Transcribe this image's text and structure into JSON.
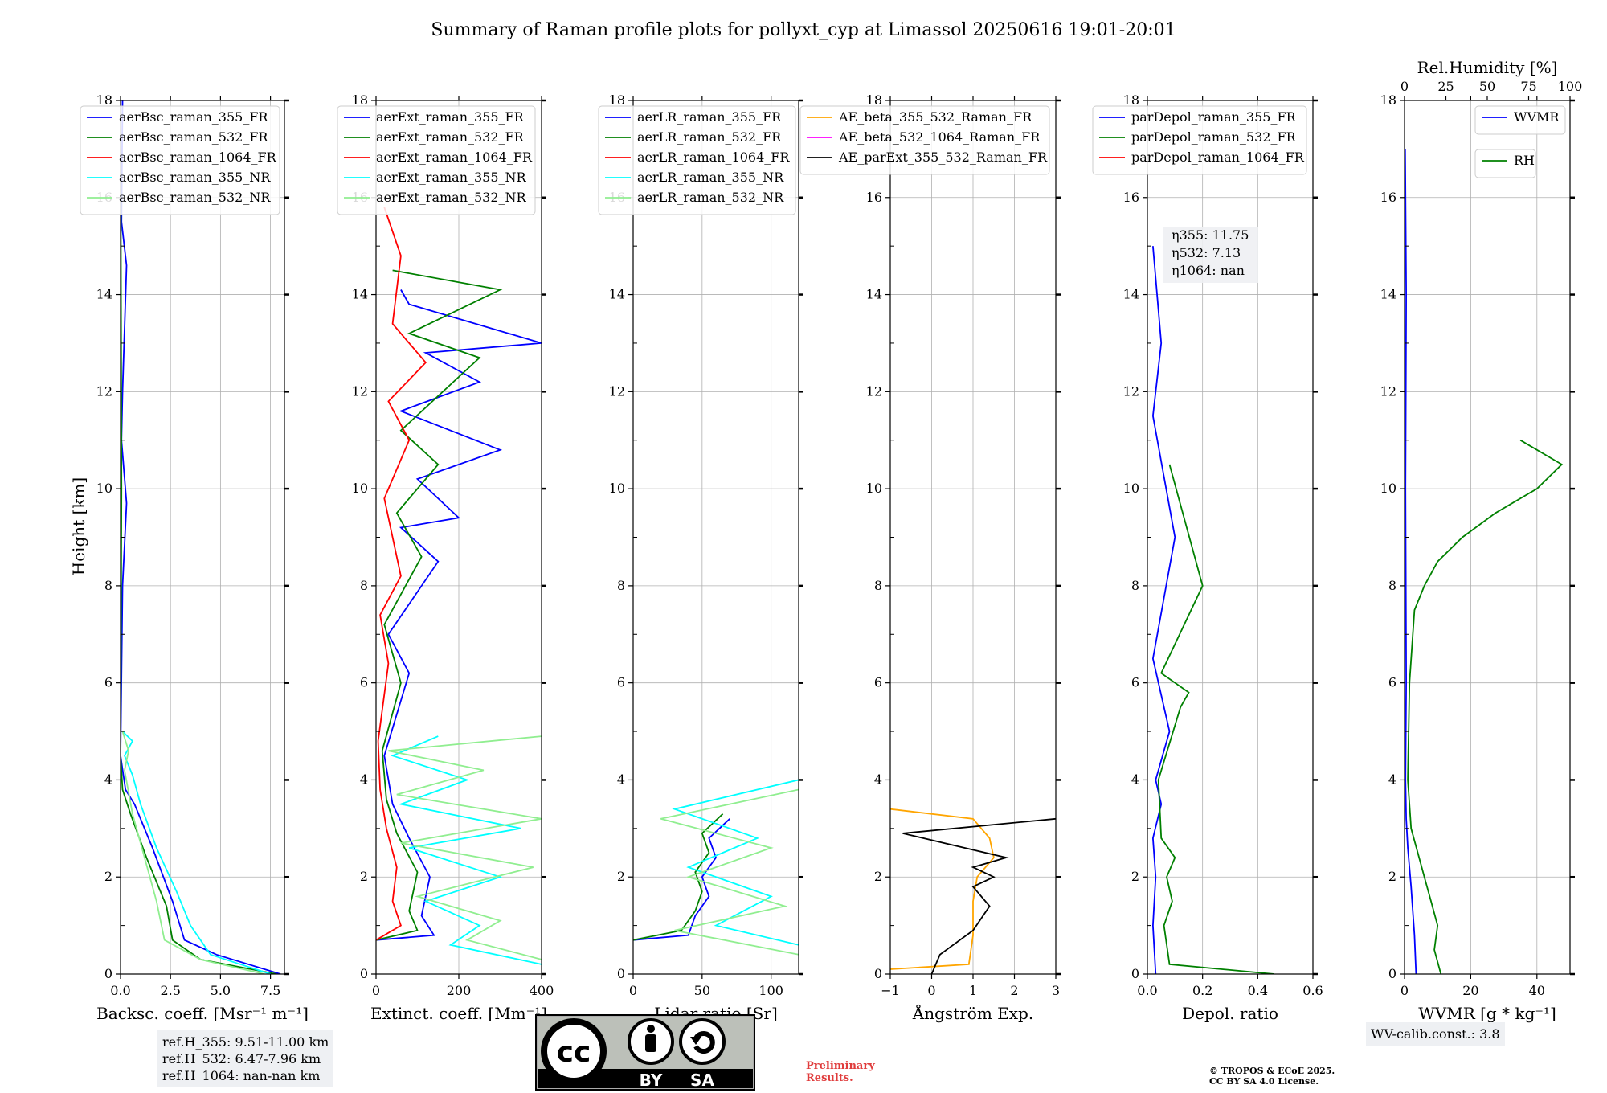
{
  "figure": {
    "title": "Summary of Raman profile plots for pollyxt_cyp at Limassol 20250616 19:01-20:01",
    "ylabel": "Height [km]"
  },
  "chart_data": [
    {
      "type": "line",
      "panel": "backscatter",
      "xlabel": "Backsc. coeff. [Msr⁻¹ m⁻¹]",
      "xlim": [
        0,
        8.2
      ],
      "ylim": [
        0,
        18
      ],
      "xticks": [
        0,
        2.5,
        5,
        7.5
      ],
      "xticklabels": [
        "0.0",
        "2.5",
        "5.0",
        "7.5"
      ],
      "yticks": [
        0,
        2,
        4,
        6,
        8,
        10,
        12,
        14,
        16,
        18
      ],
      "legend": "top-left",
      "series": [
        {
          "name": "aerBsc_raman_355_FR",
          "color": "#0000ff",
          "x": [
            8.0,
            4.8,
            3.2,
            2.6,
            1.6,
            0.7,
            0.25,
            0.0,
            0.1,
            0.3,
            0.05,
            0.1,
            0.3,
            0.05,
            0.1
          ],
          "y": [
            0,
            0.4,
            0.7,
            1.5,
            2.6,
            3.5,
            3.8,
            4.5,
            8,
            9.7,
            11,
            12,
            14.6,
            15.5,
            18
          ]
        },
        {
          "name": "aerBsc_raman_532_FR",
          "color": "#008000",
          "x": [
            7.8,
            4.0,
            2.6,
            2.3,
            1.3,
            0.5,
            0.1,
            0.0,
            0.05,
            0.0
          ],
          "y": [
            0,
            0.3,
            0.7,
            1.4,
            2.4,
            3.3,
            3.8,
            4.5,
            10,
            18
          ]
        },
        {
          "name": "aerBsc_raman_1064_FR",
          "color": "#ff0000",
          "x": [],
          "y": []
        },
        {
          "name": "aerBsc_raman_355_NR",
          "color": "#00ffff",
          "x": [
            7.5,
            4.5,
            3.5,
            2.8,
            1.8,
            1.0,
            0.6,
            0.2,
            0.6,
            0.1
          ],
          "y": [
            0,
            0.4,
            1.0,
            1.7,
            2.6,
            3.5,
            4.1,
            4.5,
            4.8,
            5.0
          ]
        },
        {
          "name": "aerBsc_raman_532_NR",
          "color": "#90ee90",
          "x": [
            7.2,
            4.0,
            2.2,
            1.8,
            1.2,
            0.6,
            0.2,
            0.4,
            0.1
          ],
          "y": [
            0,
            0.3,
            0.7,
            1.5,
            2.4,
            3.3,
            4.2,
            4.6,
            5.0
          ]
        }
      ]
    },
    {
      "type": "line",
      "panel": "extinction",
      "xlabel": "Extinct. coeff. [Mm⁻¹]",
      "xlim": [
        0,
        400
      ],
      "ylim": [
        0,
        18
      ],
      "xticks": [
        0,
        200,
        400
      ],
      "xticklabels": [
        "0",
        "200",
        "400"
      ],
      "yticks": [
        0,
        2,
        4,
        6,
        8,
        10,
        12,
        14,
        16,
        18
      ],
      "legend": "top-left",
      "series": [
        {
          "name": "aerExt_raman_355_FR",
          "color": "#0000ff",
          "x": [
            0,
            140,
            110,
            130,
            80,
            40,
            20,
            80,
            30,
            150,
            60,
            200,
            100,
            300,
            60,
            250,
            120,
            400,
            80,
            60
          ],
          "y": [
            0.7,
            0.8,
            1.2,
            2.0,
            2.8,
            3.5,
            4.5,
            6.2,
            7.0,
            8.5,
            9.2,
            9.4,
            10.2,
            10.8,
            11.6,
            12.2,
            12.8,
            13.0,
            13.8,
            14.1
          ]
        },
        {
          "name": "aerExt_raman_532_FR",
          "color": "#008000",
          "x": [
            0,
            100,
            80,
            100,
            50,
            25,
            15,
            60,
            20,
            110,
            50,
            150,
            60,
            250,
            80,
            300,
            40
          ],
          "y": [
            0.7,
            0.9,
            1.3,
            2.1,
            2.9,
            3.6,
            4.6,
            6.0,
            7.2,
            8.6,
            9.5,
            10.5,
            11.2,
            12.7,
            13.2,
            14.1,
            14.5
          ]
        },
        {
          "name": "aerExt_raman_1064_FR",
          "color": "#ff0000",
          "x": [
            0,
            60,
            40,
            50,
            25,
            10,
            5,
            30,
            10,
            60,
            20,
            80,
            30,
            120,
            40,
            60,
            20
          ],
          "y": [
            0.7,
            1.0,
            1.5,
            2.2,
            3.0,
            3.8,
            4.8,
            6.4,
            7.4,
            8.2,
            9.8,
            11.0,
            11.8,
            12.6,
            13.4,
            14.8,
            15.8
          ]
        },
        {
          "name": "aerExt_raman_355_NR",
          "color": "#00ffff",
          "x": [
            400,
            180,
            250,
            120,
            300,
            80,
            350,
            60,
            220,
            40,
            150
          ],
          "y": [
            0.2,
            0.6,
            1.0,
            1.5,
            2.0,
            2.6,
            3.0,
            3.5,
            4.0,
            4.5,
            4.9
          ]
        },
        {
          "name": "aerExt_raman_532_NR",
          "color": "#90ee90",
          "x": [
            400,
            220,
            300,
            100,
            380,
            60,
            400,
            50,
            260,
            30,
            400
          ],
          "y": [
            0.3,
            0.7,
            1.1,
            1.6,
            2.2,
            2.7,
            3.2,
            3.7,
            4.2,
            4.6,
            4.9
          ]
        }
      ]
    },
    {
      "type": "line",
      "panel": "lidar_ratio",
      "xlabel": "Lidar ratio [Sr]",
      "xlim": [
        0,
        120
      ],
      "ylim": [
        0,
        18
      ],
      "xticks": [
        0,
        50,
        100
      ],
      "xticklabels": [
        "0",
        "50",
        "100"
      ],
      "yticks": [
        0,
        2,
        4,
        6,
        8,
        10,
        12,
        14,
        16,
        18
      ],
      "legend": "top-left",
      "series": [
        {
          "name": "aerLR_raman_355_FR",
          "color": "#0000ff",
          "x": [
            0,
            40,
            45,
            55,
            50,
            60,
            55,
            70
          ],
          "y": [
            0.7,
            0.8,
            1.2,
            1.6,
            2.0,
            2.4,
            2.8,
            3.2
          ]
        },
        {
          "name": "aerLR_raman_532_FR",
          "color": "#008000",
          "x": [
            0,
            35,
            45,
            50,
            45,
            55,
            50,
            65
          ],
          "y": [
            0.7,
            0.9,
            1.3,
            1.7,
            2.1,
            2.5,
            2.9,
            3.3
          ]
        },
        {
          "name": "aerLR_raman_1064_FR",
          "color": "#ff0000",
          "x": [],
          "y": []
        },
        {
          "name": "aerLR_raman_355_NR",
          "color": "#00ffff",
          "x": [
            120,
            60,
            100,
            40,
            90,
            30,
            120
          ],
          "y": [
            0.6,
            1.0,
            1.6,
            2.2,
            2.8,
            3.4,
            4.0
          ]
        },
        {
          "name": "aerLR_raman_532_NR",
          "color": "#90ee90",
          "x": [
            120,
            30,
            110,
            40,
            100,
            20,
            120
          ],
          "y": [
            0.4,
            0.9,
            1.4,
            2.0,
            2.6,
            3.2,
            3.8
          ]
        }
      ]
    },
    {
      "type": "line",
      "panel": "angstrom",
      "xlabel": "Ångström Exp.",
      "xlim": [
        -1,
        3
      ],
      "ylim": [
        0,
        18
      ],
      "xticks": [
        -1,
        0,
        1,
        2,
        3
      ],
      "xticklabels": [
        "−1",
        "0",
        "1",
        "2",
        "3"
      ],
      "yticks": [
        0,
        2,
        4,
        6,
        8,
        10,
        12,
        14,
        16,
        18
      ],
      "legend": "top-right",
      "series": [
        {
          "name": "AE_beta_355_532_Raman_FR",
          "color": "#ffa500",
          "x": [
            -1,
            0.9,
            1.0,
            1.0,
            1.1,
            1.5,
            1.4,
            1.0,
            -1.0
          ],
          "y": [
            0.1,
            0.2,
            0.8,
            1.5,
            2.0,
            2.4,
            2.8,
            3.2,
            3.4
          ]
        },
        {
          "name": "AE_beta_532_1064_Raman_FR",
          "color": "#ff00ff",
          "x": [],
          "y": []
        },
        {
          "name": "AE_parExt_355_532_Raman_FR",
          "color": "#000000",
          "x": [
            0,
            0.2,
            1.0,
            1.4,
            1.0,
            1.5,
            1.0,
            1.8,
            0.3,
            -0.7,
            3.0
          ],
          "y": [
            0.0,
            0.4,
            0.9,
            1.4,
            1.8,
            2.0,
            2.2,
            2.4,
            2.7,
            2.9,
            3.2
          ]
        }
      ]
    },
    {
      "type": "line",
      "panel": "depolarization",
      "xlabel": "Depol. ratio",
      "xlim": [
        0,
        0.6
      ],
      "ylim": [
        0,
        18
      ],
      "xticks": [
        0,
        0.2,
        0.4,
        0.6
      ],
      "xticklabels": [
        "0.0",
        "0.2",
        "0.4",
        "0.6"
      ],
      "yticks": [
        0,
        2,
        4,
        6,
        8,
        10,
        12,
        14,
        16,
        18
      ],
      "legend": "top-left",
      "annotation": [
        "η355: 11.75",
        "η532: 7.13",
        "η1064: nan"
      ],
      "series": [
        {
          "name": "parDepol_raman_355_FR",
          "color": "#0000ff",
          "x": [
            0.03,
            0.02,
            0.03,
            0.02,
            0.05,
            0.03,
            0.08,
            0.02,
            0.1,
            0.02,
            0.05,
            0.02
          ],
          "y": [
            0,
            1.0,
            2.0,
            2.8,
            3.5,
            4.0,
            5.0,
            6.5,
            9.0,
            11.5,
            13.0,
            15.0
          ]
        },
        {
          "name": "parDepol_raman_532_FR",
          "color": "#008000",
          "x": [
            0.46,
            0.08,
            0.06,
            0.09,
            0.07,
            0.1,
            0.05,
            0.04,
            0.12,
            0.15,
            0.05,
            0.2,
            0.08
          ],
          "y": [
            0,
            0.2,
            1.0,
            1.5,
            2.0,
            2.4,
            2.8,
            4.0,
            5.5,
            5.8,
            6.2,
            8.0,
            10.5
          ]
        },
        {
          "name": "parDepol_raman_1064_FR",
          "color": "#ff0000",
          "x": [],
          "y": []
        }
      ]
    },
    {
      "type": "line",
      "panel": "water_vapor",
      "xlabel": "WVMR [g * kg⁻¹]",
      "xlim": [
        0,
        50
      ],
      "ylim": [
        0,
        18
      ],
      "xticks": [
        0,
        20,
        40
      ],
      "xticklabels": [
        "0",
        "20",
        "40"
      ],
      "yticks": [
        0,
        2,
        4,
        6,
        8,
        10,
        12,
        14,
        16,
        18
      ],
      "top_xlabel": "Rel.Humidity [%]",
      "top_xlim": [
        0,
        100
      ],
      "top_xticks": [
        0,
        25,
        50,
        75,
        100
      ],
      "top_xticklabels": [
        "0",
        "25",
        "50",
        "75",
        "100"
      ],
      "series": [
        {
          "name": "WVMR",
          "color": "#0000ff",
          "x": [
            3.5,
            3.0,
            2.0,
            1.0,
            0.5,
            0.3,
            0.5,
            0.3,
            0.5,
            0.2
          ],
          "y": [
            0,
            0.8,
            1.8,
            2.6,
            3.2,
            4.0,
            6.0,
            10.0,
            14.0,
            17.0
          ]
        },
        {
          "name": "RH",
          "color": "#008000",
          "x_rh": [
            22,
            18,
            20,
            16,
            12,
            8,
            4,
            2,
            3,
            6,
            12,
            20,
            35,
            55,
            80,
            95,
            70
          ],
          "y": [
            0,
            0.5,
            1.0,
            1.5,
            2.0,
            2.5,
            3.0,
            4.0,
            6.0,
            7.5,
            8.0,
            8.5,
            9.0,
            9.5,
            10.0,
            10.5,
            11.0
          ]
        }
      ]
    }
  ],
  "legends": {
    "bsc": [
      "aerBsc_raman_355_FR",
      "aerBsc_raman_532_FR",
      "aerBsc_raman_1064_FR",
      "aerBsc_raman_355_NR",
      "aerBsc_raman_532_NR"
    ],
    "ext": [
      "aerExt_raman_355_FR",
      "aerExt_raman_532_FR",
      "aerExt_raman_1064_FR",
      "aerExt_raman_355_NR",
      "aerExt_raman_532_NR"
    ],
    "lr": [
      "aerLR_raman_355_FR",
      "aerLR_raman_532_FR",
      "aerLR_raman_1064_FR",
      "aerLR_raman_355_NR",
      "aerLR_raman_532_NR"
    ],
    "ae": [
      "AE_beta_355_532_Raman_FR",
      "AE_beta_532_1064_Raman_FR",
      "AE_parExt_355_532_Raman_FR"
    ],
    "dep": [
      "parDepol_raman_355_FR",
      "parDepol_raman_532_FR",
      "parDepol_raman_1064_FR"
    ],
    "wv": [
      "WVMR"
    ],
    "rh": [
      "RH"
    ]
  },
  "colors": {
    "blue": "#0000ff",
    "green": "#008000",
    "red": "#ff0000",
    "cyan": "#00ffff",
    "lightgreen": "#90ee90",
    "orange": "#ffa500",
    "magenta": "#ff00ff",
    "black": "#000000"
  },
  "ref_heights": [
    "ref.H_355: 9.51-11.00 km",
    "ref.H_532: 6.47-7.96 km",
    "ref.H_1064: nan-nan km"
  ],
  "wv_calib": "WV-calib.const.: 3.8",
  "preliminary": [
    "Preliminary",
    "Results."
  ],
  "copyright": [
    "© TROPOS & ECoE 2025.",
    "CC BY SA 4.0 License."
  ],
  "license_logo": {
    "cc": "cc",
    "by": "BY",
    "sa": "SA"
  }
}
